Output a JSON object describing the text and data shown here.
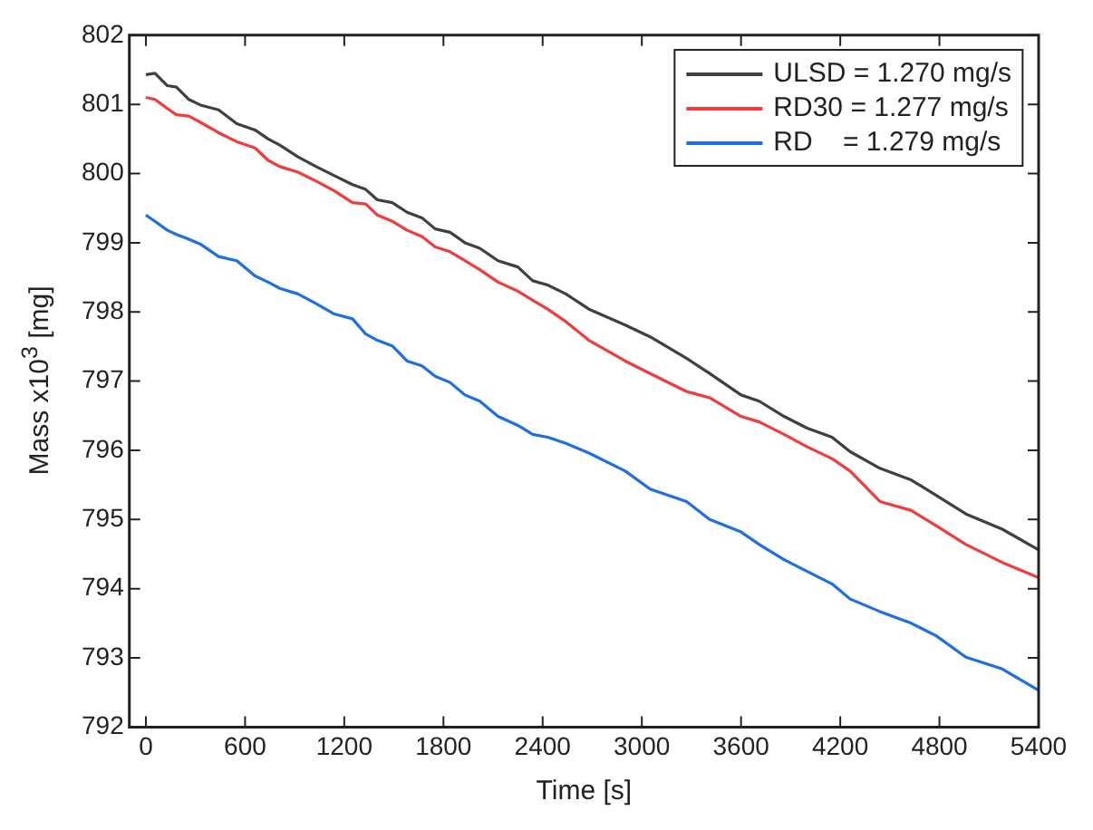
{
  "chart_data": {
    "type": "line",
    "xlabel": "Time [s]",
    "ylabel": "Mass x10$^{3}$ [mg]",
    "x": [
      0,
      55,
      130,
      185,
      260,
      330,
      440,
      550,
      660,
      740,
      810,
      920,
      1030,
      1140,
      1250,
      1330,
      1400,
      1490,
      1580,
      1670,
      1750,
      1840,
      1930,
      2020,
      2130,
      2250,
      2340,
      2430,
      2540,
      2680,
      2900,
      3050,
      3270,
      3410,
      3600,
      3710,
      3860,
      4000,
      4150,
      4260,
      4440,
      4630,
      4780,
      4960,
      5180,
      5400
    ],
    "series": [
      {
        "name": "ULSD = 1.270 mg/s",
        "color": "#404040",
        "values": [
          801.43,
          801.45,
          801.27,
          801.25,
          801.07,
          800.99,
          800.92,
          800.72,
          800.63,
          800.5,
          800.41,
          800.24,
          800.1,
          799.97,
          799.84,
          799.77,
          799.62,
          799.58,
          799.44,
          799.36,
          799.2,
          799.15,
          799.0,
          798.92,
          798.74,
          798.65,
          798.45,
          798.39,
          798.26,
          798.04,
          797.81,
          797.64,
          797.33,
          797.11,
          796.8,
          796.71,
          796.49,
          796.32,
          796.19,
          795.98,
          795.74,
          795.57,
          795.35,
          795.08,
          794.86,
          794.56
        ]
      },
      {
        "name": "RD30 = 1.277 mg/s",
        "color": "#f03c3c",
        "values": [
          801.1,
          801.07,
          800.94,
          800.85,
          800.83,
          800.74,
          800.59,
          800.46,
          800.37,
          800.19,
          800.1,
          800.02,
          799.89,
          799.75,
          799.58,
          799.56,
          799.4,
          799.31,
          799.18,
          799.09,
          798.94,
          798.87,
          798.74,
          798.61,
          798.43,
          798.3,
          798.17,
          798.04,
          797.86,
          797.59,
          797.29,
          797.11,
          796.85,
          796.76,
          796.49,
          796.41,
          796.23,
          796.05,
          795.88,
          795.7,
          795.26,
          795.13,
          794.91,
          794.64,
          794.38,
          794.16
        ]
      },
      {
        "name": "RD    = 1.279 mg/s",
        "color": "#1f6fe0",
        "values": [
          799.4,
          799.31,
          799.18,
          799.12,
          799.05,
          798.98,
          798.8,
          798.74,
          798.52,
          798.43,
          798.34,
          798.26,
          798.12,
          797.97,
          797.9,
          797.68,
          797.59,
          797.51,
          797.29,
          797.22,
          797.07,
          796.98,
          796.8,
          796.71,
          796.49,
          796.36,
          796.23,
          796.19,
          796.1,
          795.96,
          795.7,
          795.44,
          795.26,
          795.0,
          794.82,
          794.64,
          794.42,
          794.25,
          794.07,
          793.85,
          793.67,
          793.5,
          793.32,
          793.01,
          792.84,
          792.53
        ]
      }
    ],
    "xlim": [
      -100,
      5400
    ],
    "xticks": [
      0,
      600,
      1200,
      1800,
      2400,
      3000,
      3600,
      4200,
      4800,
      5400
    ],
    "ylim": [
      792,
      802
    ],
    "yticks": [
      792,
      793,
      794,
      795,
      796,
      797,
      798,
      799,
      800,
      801,
      802
    ],
    "legend": "top right",
    "marker": "none",
    "line_style": "solid"
  }
}
